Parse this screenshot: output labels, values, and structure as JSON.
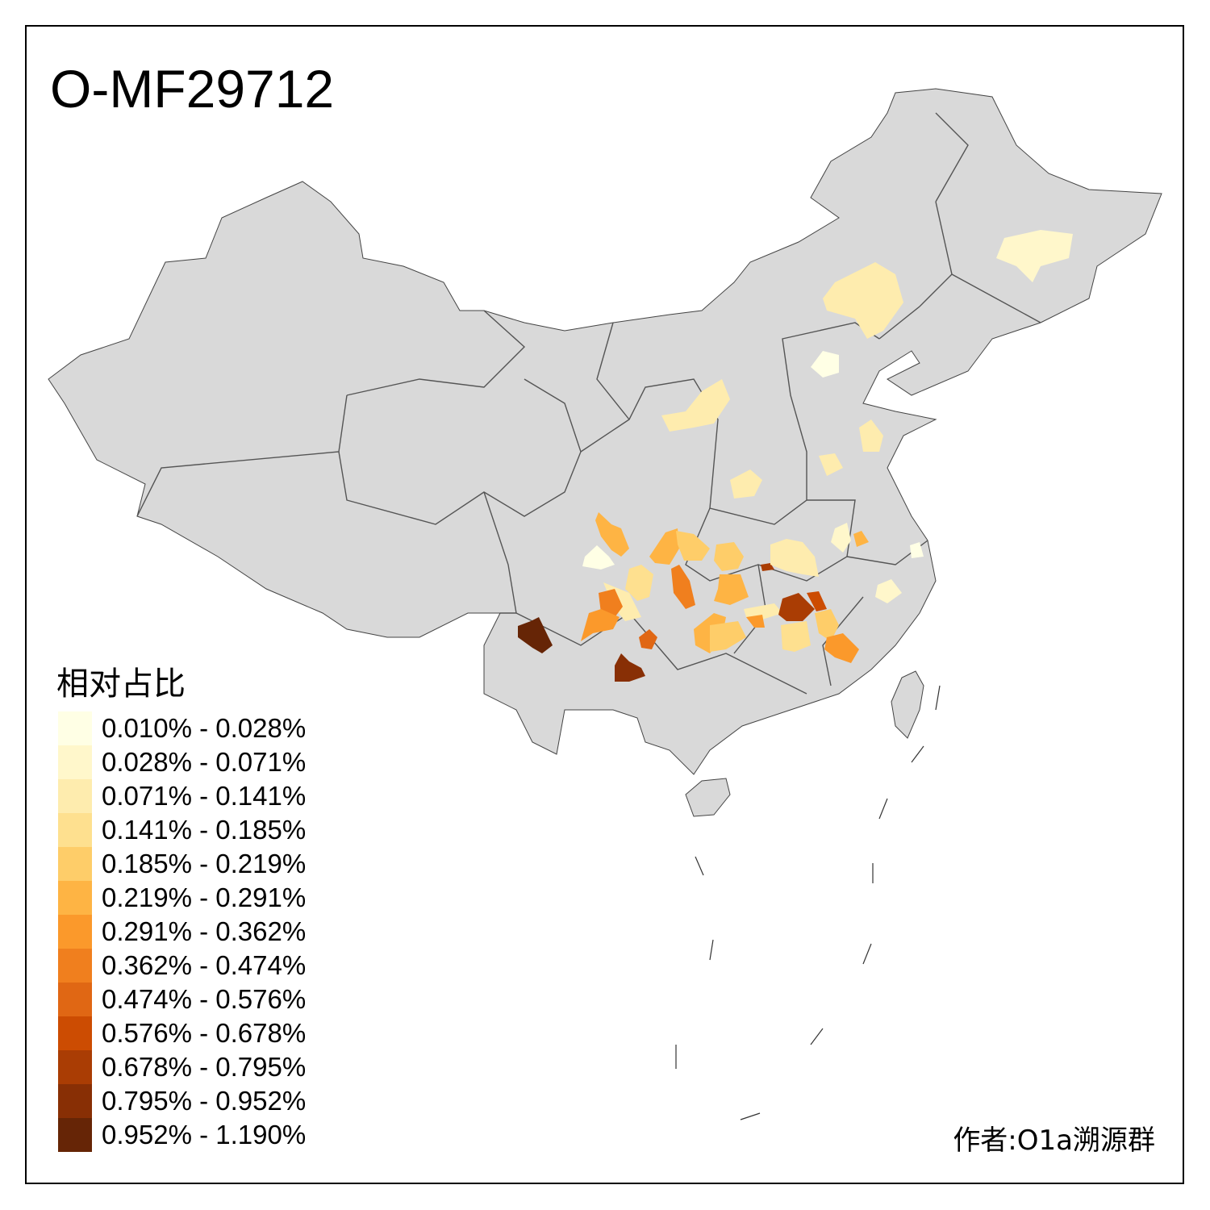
{
  "title": "O-MF29712",
  "legend": {
    "title": "相对占比",
    "items": [
      {
        "label": "0.010% - 0.028%",
        "color": "#FFFFE5"
      },
      {
        "label": "0.028% - 0.071%",
        "color": "#FFF7CB"
      },
      {
        "label": "0.071% - 0.141%",
        "color": "#FEECAE"
      },
      {
        "label": "0.141% - 0.185%",
        "color": "#FEE08F"
      },
      {
        "label": "0.185% - 0.219%",
        "color": "#FECD69"
      },
      {
        "label": "0.219% - 0.291%",
        "color": "#FEB444"
      },
      {
        "label": "0.291% - 0.362%",
        "color": "#FB992B"
      },
      {
        "label": "0.362% - 0.474%",
        "color": "#F07F1E"
      },
      {
        "label": "0.474% - 0.576%",
        "color": "#E06714"
      },
      {
        "label": "0.576% - 0.678%",
        "color": "#CC4C02"
      },
      {
        "label": "0.678% - 0.795%",
        "color": "#AA3D04"
      },
      {
        "label": "0.795% - 0.952%",
        "color": "#882F05"
      },
      {
        "label": "0.952% - 1.190%",
        "color": "#662506"
      }
    ]
  },
  "map": {
    "land_color": "#D9D9D9",
    "border_color": "#555555",
    "no_data": "grey"
  },
  "credit": "作者:O1a溯源群"
}
